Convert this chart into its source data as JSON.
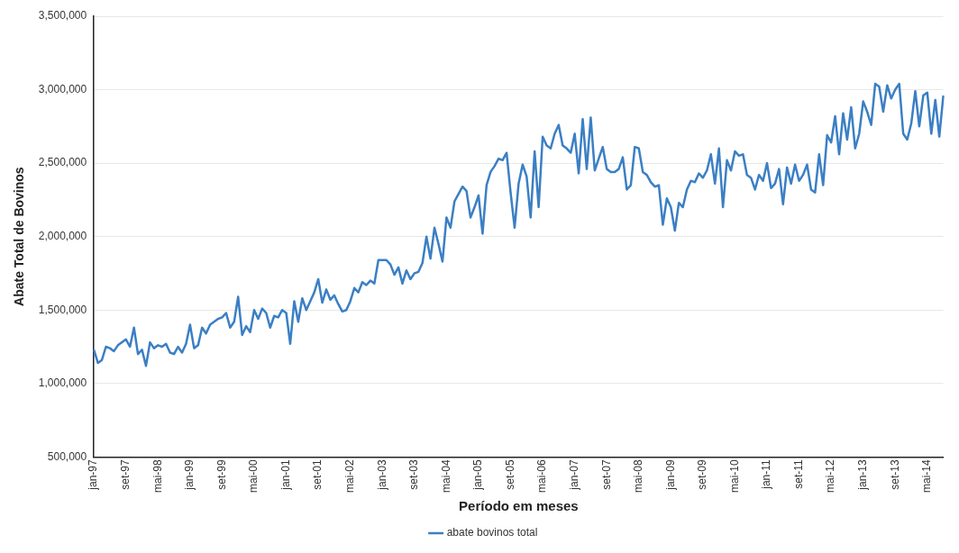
{
  "chart_data": {
    "type": "line",
    "xlabel": "Período em meses",
    "ylabel": "Abate Total de Bovinos",
    "categories": [
      "jan-97",
      null,
      null,
      null,
      null,
      null,
      null,
      null,
      "set-97",
      null,
      null,
      null,
      null,
      null,
      null,
      null,
      "mai-98",
      null,
      null,
      null,
      null,
      null,
      null,
      null,
      "jan-99",
      null,
      null,
      null,
      null,
      null,
      null,
      null,
      "set-99",
      null,
      null,
      null,
      null,
      null,
      null,
      null,
      "mai-00",
      null,
      null,
      null,
      null,
      null,
      null,
      null,
      "jan-01",
      null,
      null,
      null,
      null,
      null,
      null,
      null,
      "set-01",
      null,
      null,
      null,
      null,
      null,
      null,
      null,
      "mai-02",
      null,
      null,
      null,
      null,
      null,
      null,
      null,
      "jan-03",
      null,
      null,
      null,
      null,
      null,
      null,
      null,
      "set-03",
      null,
      null,
      null,
      null,
      null,
      null,
      null,
      "mai-04",
      null,
      null,
      null,
      null,
      null,
      null,
      null,
      "jan-05",
      null,
      null,
      null,
      null,
      null,
      null,
      null,
      "set-05",
      null,
      null,
      null,
      null,
      null,
      null,
      null,
      "mai-06",
      null,
      null,
      null,
      null,
      null,
      null,
      null,
      "jan-07",
      null,
      null,
      null,
      null,
      null,
      null,
      null,
      "set-07",
      null,
      null,
      null,
      null,
      null,
      null,
      null,
      "mai-08",
      null,
      null,
      null,
      null,
      null,
      null,
      null,
      "jan-09",
      null,
      null,
      null,
      null,
      null,
      null,
      null,
      "set-09",
      null,
      null,
      null,
      null,
      null,
      null,
      null,
      "mai-10",
      null,
      null,
      null,
      null,
      null,
      null,
      null,
      "jan-11",
      null,
      null,
      null,
      null,
      null,
      null,
      null,
      "set-11",
      null,
      null,
      null,
      null,
      null,
      null,
      null,
      "mai-12",
      null,
      null,
      null,
      null,
      null,
      null,
      null,
      "jan-13",
      null,
      null,
      null,
      null,
      null,
      null,
      null,
      "set-13",
      null,
      null,
      null,
      null,
      null,
      null,
      null,
      "mai-14",
      null,
      null,
      null,
      null
    ],
    "series": [
      {
        "name": "abate bovinos total",
        "color": "#3b7fc4",
        "values": [
          1230000,
          1140000,
          1160000,
          1250000,
          1240000,
          1220000,
          1260000,
          1280000,
          1300000,
          1250000,
          1380000,
          1200000,
          1230000,
          1120000,
          1280000,
          1240000,
          1260000,
          1250000,
          1270000,
          1210000,
          1200000,
          1250000,
          1210000,
          1270000,
          1400000,
          1240000,
          1260000,
          1380000,
          1340000,
          1400000,
          1420000,
          1440000,
          1450000,
          1480000,
          1380000,
          1420000,
          1590000,
          1330000,
          1390000,
          1350000,
          1500000,
          1440000,
          1510000,
          1480000,
          1380000,
          1460000,
          1450000,
          1500000,
          1480000,
          1270000,
          1560000,
          1420000,
          1580000,
          1500000,
          1560000,
          1620000,
          1710000,
          1550000,
          1640000,
          1570000,
          1600000,
          1540000,
          1490000,
          1500000,
          1560000,
          1650000,
          1620000,
          1690000,
          1670000,
          1700000,
          1680000,
          1840000,
          1840000,
          1840000,
          1810000,
          1740000,
          1790000,
          1680000,
          1770000,
          1710000,
          1750000,
          1760000,
          1820000,
          2000000,
          1850000,
          2060000,
          1950000,
          1830000,
          2130000,
          2060000,
          2240000,
          2290000,
          2340000,
          2310000,
          2130000,
          2200000,
          2280000,
          2020000,
          2350000,
          2440000,
          2480000,
          2530000,
          2520000,
          2570000,
          2300000,
          2060000,
          2360000,
          2490000,
          2410000,
          2130000,
          2580000,
          2200000,
          2680000,
          2620000,
          2600000,
          2700000,
          2760000,
          2620000,
          2600000,
          2570000,
          2700000,
          2430000,
          2800000,
          2460000,
          2810000,
          2450000,
          2530000,
          2610000,
          2460000,
          2440000,
          2440000,
          2460000,
          2540000,
          2320000,
          2350000,
          2610000,
          2600000,
          2440000,
          2420000,
          2370000,
          2340000,
          2350000,
          2080000,
          2260000,
          2200000,
          2040000,
          2230000,
          2200000,
          2320000,
          2380000,
          2370000,
          2430000,
          2400000,
          2450000,
          2560000,
          2360000,
          2600000,
          2200000,
          2520000,
          2450000,
          2580000,
          2550000,
          2560000,
          2420000,
          2400000,
          2320000,
          2420000,
          2380000,
          2500000,
          2330000,
          2360000,
          2460000,
          2220000,
          2470000,
          2360000,
          2490000,
          2380000,
          2420000,
          2490000,
          2320000,
          2300000,
          2560000,
          2350000,
          2690000,
          2640000,
          2820000,
          2560000,
          2840000,
          2660000,
          2880000,
          2600000,
          2700000,
          2920000,
          2850000,
          2760000,
          3040000,
          3020000,
          2850000,
          3030000,
          2940000,
          3000000,
          3040000,
          2700000,
          2660000,
          2770000,
          2990000,
          2750000,
          2960000,
          2980000,
          2700000,
          2930000,
          2680000,
          2960000
        ]
      }
    ],
    "ylim": [
      500000,
      3500000
    ],
    "yticks": [
      {
        "value": 500000,
        "label": "500,000"
      },
      {
        "value": 1000000,
        "label": "1,000,000"
      },
      {
        "value": 1500000,
        "label": "1,500,000"
      },
      {
        "value": 2000000,
        "label": "2,000,000"
      },
      {
        "value": 2500000,
        "label": "2,500,000"
      },
      {
        "value": 3000000,
        "label": "3,000,000"
      },
      {
        "value": 3500000,
        "label": "3,500,000"
      }
    ],
    "grid": "y",
    "legend": "bottom",
    "marker": "none",
    "line_style": "solid"
  }
}
